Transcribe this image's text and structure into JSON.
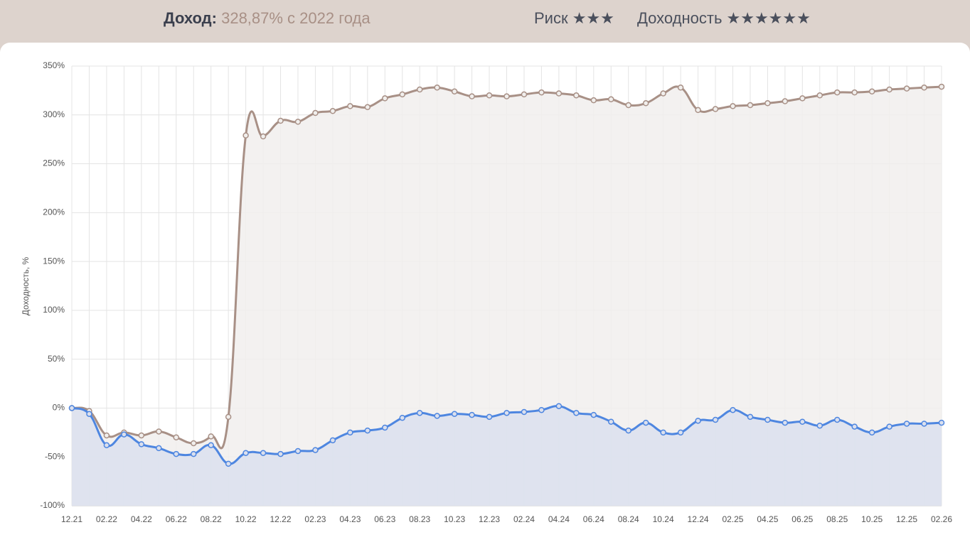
{
  "header": {
    "income_label": "Доход:",
    "income_value": "328,87% с 2022 года",
    "risk": "Риск ★★★",
    "yield": "Доходность ★★★★★★"
  },
  "chart_data": {
    "type": "line",
    "y_label": "Доходность, %",
    "categories": [
      "12.21",
      null,
      "02.22",
      null,
      "04.22",
      null,
      "06.22",
      null,
      "08.22",
      null,
      "10.22",
      null,
      "12.22",
      null,
      "02.23",
      null,
      "04.23",
      null,
      "06.23",
      null,
      "08.23",
      null,
      "10.23",
      null,
      "12.23",
      null,
      "02.24",
      null,
      "04.24",
      null,
      "06.24",
      null,
      "08.24",
      null,
      "10.24",
      null,
      "12.24",
      null,
      "02.25",
      null,
      "04.25",
      null,
      "06.25",
      null,
      "08.25",
      null,
      "10.25",
      null,
      "12.25",
      null,
      "02.26"
    ],
    "series": [
      {
        "color": "#a89086",
        "fill": "#f1efed",
        "values": [
          0,
          -3,
          -28,
          -25,
          -28,
          -24,
          -30,
          -36,
          -29,
          -9,
          279,
          278,
          294,
          293,
          302,
          304,
          309,
          308,
          317,
          321,
          326,
          328,
          324,
          319,
          320,
          319,
          321,
          323,
          322,
          320,
          315,
          316,
          310,
          312,
          322,
          328,
          305,
          306,
          309,
          310,
          312,
          314,
          317,
          320,
          323,
          323,
          324,
          326,
          327,
          328,
          328.87
        ]
      },
      {
        "color": "#4e86e0",
        "fill": "#dbe0ee",
        "values": [
          0,
          -6,
          -38,
          -27,
          -37,
          -41,
          -47,
          -47,
          -38,
          -57,
          -46,
          -46,
          -47,
          -44,
          -43,
          -33,
          -25,
          -23,
          -20,
          -10,
          -5,
          -8,
          -6,
          -7,
          -9,
          -5,
          -4,
          -2,
          2,
          -5,
          -7,
          -14,
          -23,
          -15,
          -25,
          -25,
          -13,
          -12,
          -2,
          -9,
          -12,
          -15,
          -14,
          -18,
          -12,
          -19,
          -25,
          -19,
          -16,
          -16,
          -15
        ]
      }
    ],
    "ylim": [
      -100,
      350
    ],
    "yticks": [
      {
        "value": -100,
        "label": "-100%"
      },
      {
        "value": -50,
        "label": "-50%"
      },
      {
        "value": 0,
        "label": "0%"
      },
      {
        "value": 50,
        "label": "50%"
      },
      {
        "value": 100,
        "label": "100%"
      },
      {
        "value": 150,
        "label": "150%"
      },
      {
        "value": 200,
        "label": "200%"
      },
      {
        "value": 250,
        "label": "250%"
      },
      {
        "value": 300,
        "label": "300%"
      },
      {
        "value": 350,
        "label": "350%"
      }
    ],
    "grid": true
  }
}
